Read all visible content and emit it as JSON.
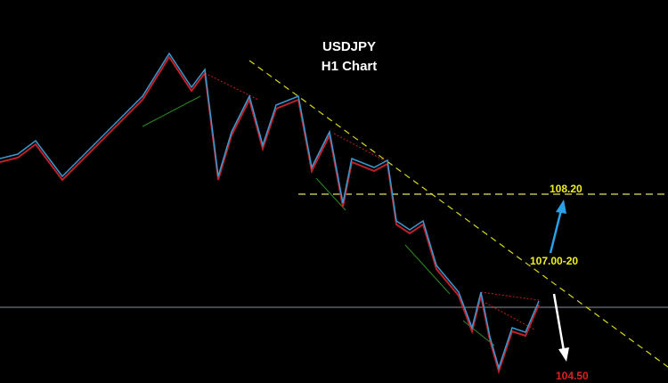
{
  "title": "USDJPY",
  "subtitle": "H1 Chart",
  "annotations": [
    "108.20",
    "107.00-20",
    "104.50"
  ]
}
